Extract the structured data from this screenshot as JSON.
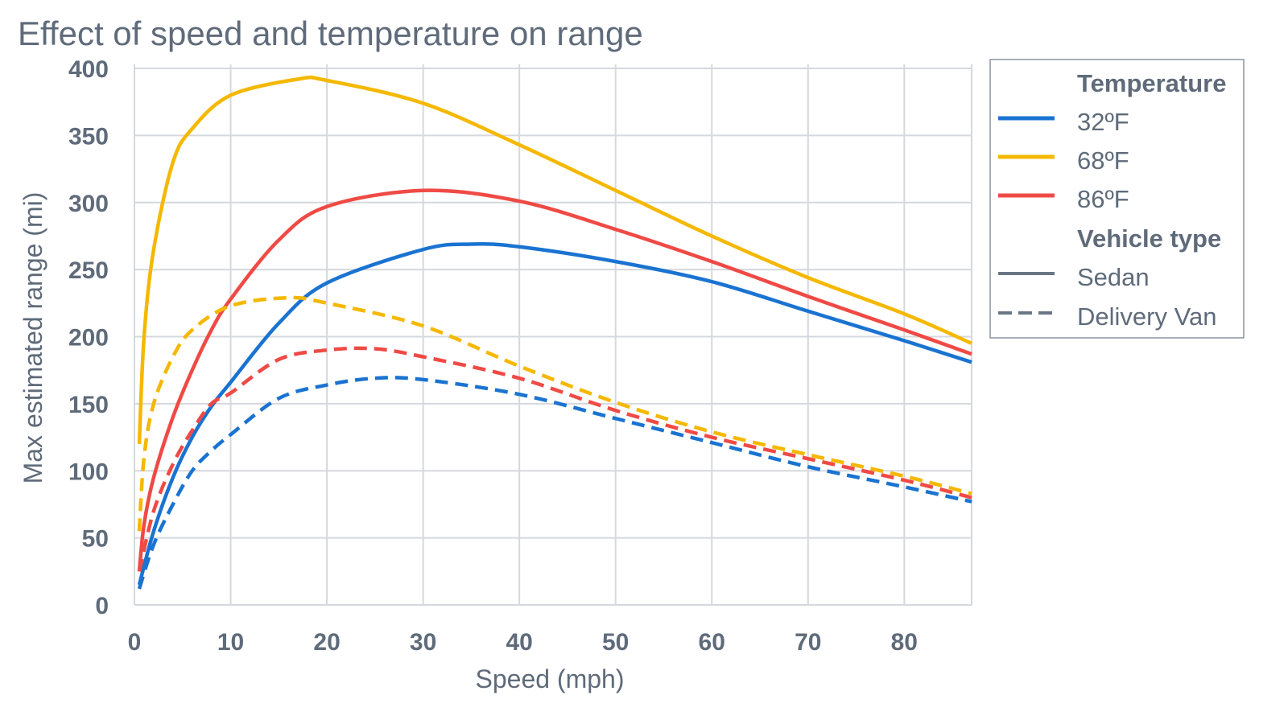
{
  "chart_data": {
    "type": "line",
    "title": "Effect of speed and temperature on range",
    "xlabel": "Speed (mph)",
    "ylabel": "Max estimated range (mi)",
    "xlim": [
      0,
      87
    ],
    "ylim": [
      0,
      400
    ],
    "xticks": [
      0,
      10,
      20,
      30,
      40,
      50,
      60,
      70,
      80
    ],
    "yticks": [
      0,
      50,
      100,
      150,
      200,
      250,
      300,
      350,
      400
    ],
    "grid": true,
    "legend_position": "right",
    "legend": {
      "temperature_title": "Temperature",
      "temperatures": [
        {
          "label": "32ºF",
          "color": "#1a73d1"
        },
        {
          "label": "68ºF",
          "color": "#f5b800"
        },
        {
          "label": "86ºF",
          "color": "#ef4a45"
        }
      ],
      "vehicle_title": "Vehicle type",
      "vehicles": [
        {
          "label": "Sedan",
          "dash": "solid"
        },
        {
          "label": "Delivery Van",
          "dash": "dashed"
        }
      ]
    },
    "series": [
      {
        "temperature": "68ºF",
        "vehicle": "Sedan",
        "color": "#f5b800",
        "dash": "solid",
        "x": [
          0.5,
          1,
          2,
          4,
          6,
          10,
          17,
          20,
          30,
          40,
          50,
          60,
          70,
          80,
          87
        ],
        "y": [
          120,
          200,
          265,
          330,
          355,
          380,
          392,
          391,
          374,
          343,
          309,
          275,
          244,
          217,
          195
        ]
      },
      {
        "temperature": "86ºF",
        "vehicle": "Sedan",
        "color": "#ef4a45",
        "dash": "solid",
        "x": [
          0.5,
          1,
          2,
          4,
          6,
          8,
          10,
          15,
          20,
          30,
          40,
          50,
          60,
          70,
          80,
          87
        ],
        "y": [
          25,
          60,
          95,
          140,
          175,
          205,
          228,
          272,
          297,
          309,
          301,
          280,
          256,
          230,
          205,
          187
        ]
      },
      {
        "temperature": "32ºF",
        "vehicle": "Sedan",
        "color": "#1a73d1",
        "dash": "solid",
        "x": [
          0.5,
          2,
          4,
          6,
          8,
          10,
          15,
          20,
          30,
          35,
          40,
          50,
          60,
          70,
          80,
          87
        ],
        "y": [
          15,
          55,
          95,
          125,
          148,
          166,
          210,
          240,
          265,
          269,
          267,
          256,
          241,
          219,
          197,
          181
        ]
      },
      {
        "temperature": "68ºF",
        "vehicle": "Delivery Van",
        "color": "#f5b800",
        "dash": "dashed",
        "x": [
          0.5,
          1,
          2,
          4,
          6,
          10,
          16,
          20,
          30,
          40,
          50,
          60,
          70,
          80,
          87
        ],
        "y": [
          55,
          110,
          150,
          185,
          205,
          223,
          229,
          225,
          208,
          178,
          151,
          129,
          112,
          96,
          83
        ]
      },
      {
        "temperature": "86ºF",
        "vehicle": "Delivery Van",
        "color": "#ef4a45",
        "dash": "dashed",
        "x": [
          0.5,
          2,
          4,
          6,
          8,
          10,
          15,
          20,
          25,
          30,
          40,
          50,
          60,
          70,
          80,
          87
        ],
        "y": [
          25,
          70,
          105,
          130,
          150,
          158,
          183,
          190,
          191,
          185,
          169,
          145,
          125,
          109,
          93,
          80
        ]
      },
      {
        "temperature": "32ºF",
        "vehicle": "Delivery Van",
        "color": "#1a73d1",
        "dash": "dashed",
        "x": [
          0.5,
          2,
          4,
          6,
          8,
          10,
          15,
          20,
          25,
          30,
          40,
          50,
          60,
          70,
          80,
          87
        ],
        "y": [
          12,
          45,
          75,
          100,
          115,
          127,
          154,
          164,
          169,
          168,
          157,
          139,
          121,
          103,
          88,
          77
        ]
      }
    ]
  }
}
